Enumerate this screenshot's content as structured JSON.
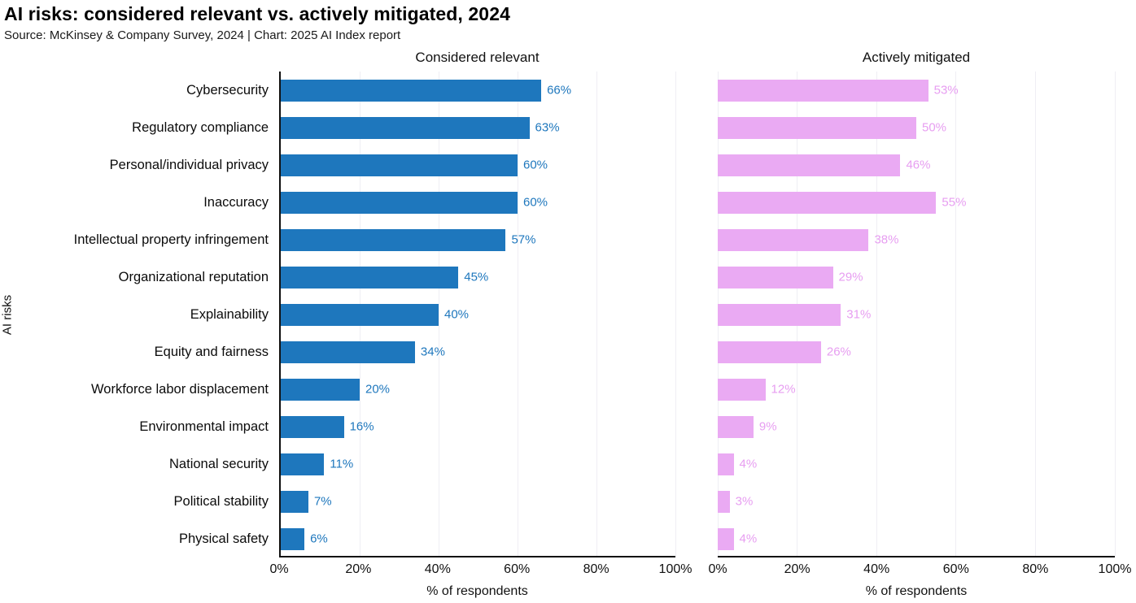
{
  "header": {
    "title": "AI risks: considered relevant vs. actively mitigated, 2024",
    "subtitle": "Source: McKinsey & Company Survey, 2024 | Chart: 2025 AI Index report"
  },
  "chart_data": {
    "type": "bar",
    "orientation": "horizontal",
    "title": "AI risks: considered relevant vs. actively mitigated, 2024",
    "subtitle": "Source: McKinsey & Company Survey, 2024 | Chart: 2025 AI Index report",
    "xlabel": "% of respondents",
    "ylabel": "AI risks",
    "xlim": [
      0,
      100
    ],
    "xticks": [
      0,
      20,
      40,
      60,
      80,
      100
    ],
    "xtick_labels": [
      "0%",
      "20%",
      "40%",
      "60%",
      "80%",
      "100%"
    ],
    "grid": "vertical",
    "value_suffix": "%",
    "categories": [
      "Cybersecurity",
      "Regulatory compliance",
      "Personal/individual privacy",
      "Inaccuracy",
      "Intellectual property infringement",
      "Organizational reputation",
      "Explainability",
      "Equity and fairness",
      "Workforce labor displacement",
      "Environmental impact",
      "National security",
      "Political stability",
      "Physical safety"
    ],
    "series": [
      {
        "name": "Considered relevant",
        "bar_color": "#1e77bd",
        "label_color": "#1e77bd",
        "values": [
          66,
          63,
          60,
          60,
          57,
          45,
          40,
          34,
          20,
          16,
          11,
          7,
          6
        ]
      },
      {
        "name": "Actively mitigated",
        "bar_color": "#eaaaf3",
        "label_color": "#e79ef1",
        "values": [
          53,
          50,
          46,
          55,
          38,
          29,
          31,
          26,
          12,
          9,
          4,
          3,
          4
        ]
      }
    ]
  },
  "colors": {
    "spine": "#111111",
    "gridline": "#efeef4",
    "text": "#111111"
  }
}
